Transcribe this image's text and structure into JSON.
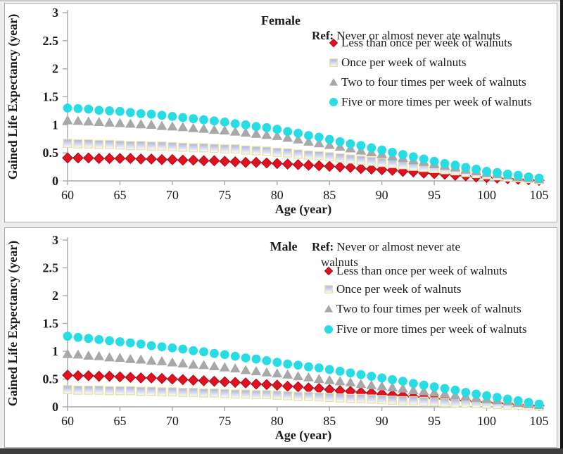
{
  "figure": {
    "accent_colors": {
      "diamond_red": "#e3101f",
      "diamond_red_edge": "#a60d18",
      "square_fill_top": "#a8b2e0",
      "square_fill_bottom": "#fdfdff",
      "square_edge": "#e7e1a2",
      "triangle_gray": "#a8a8a8",
      "circle_cyan": "#27dce4",
      "axis_gray": "#a8a8a8",
      "text_dark": "#1c1c1c"
    }
  },
  "chart_data": [
    {
      "type": "scatter",
      "title": "Female",
      "xlabel": "Age (year)",
      "ylabel": "Gained Life Expectancy (year)",
      "xlim": [
        58.5,
        106
      ],
      "ylim": [
        0,
        3
      ],
      "x_ticks": [
        60,
        65,
        70,
        75,
        80,
        85,
        90,
        95,
        100,
        105
      ],
      "y_ticks": [
        0,
        0.5,
        1,
        1.5,
        2,
        2.5,
        3
      ],
      "grid": false,
      "legend_position": "top-right-inside",
      "ref_bold": "Ref:",
      "ref_lines": [
        " Never or almost never ate walnuts"
      ],
      "x_start": 60,
      "x_step": 1,
      "series": [
        {
          "name": "Less than once per week of walnuts",
          "marker": "diamond",
          "values": [
            0.41,
            0.41,
            0.41,
            0.4,
            0.4,
            0.4,
            0.4,
            0.39,
            0.39,
            0.38,
            0.38,
            0.37,
            0.37,
            0.36,
            0.36,
            0.35,
            0.34,
            0.33,
            0.33,
            0.32,
            0.31,
            0.3,
            0.29,
            0.28,
            0.27,
            0.26,
            0.25,
            0.24,
            0.22,
            0.21,
            0.2,
            0.19,
            0.17,
            0.16,
            0.14,
            0.13,
            0.12,
            0.1,
            0.09,
            0.07,
            0.06,
            0.05,
            0.04,
            0.03,
            0.02,
            0.01
          ]
        },
        {
          "name": "Once per week of walnuts",
          "marker": "square",
          "values": [
            0.67,
            0.66,
            0.66,
            0.65,
            0.65,
            0.64,
            0.63,
            0.63,
            0.62,
            0.62,
            0.61,
            0.6,
            0.59,
            0.59,
            0.58,
            0.57,
            0.57,
            0.55,
            0.54,
            0.53,
            0.51,
            0.5,
            0.48,
            0.46,
            0.45,
            0.43,
            0.41,
            0.39,
            0.37,
            0.35,
            0.33,
            0.31,
            0.29,
            0.26,
            0.24,
            0.22,
            0.2,
            0.18,
            0.15,
            0.13,
            0.11,
            0.09,
            0.07,
            0.06,
            0.04,
            0.02
          ]
        },
        {
          "name": "Two to four times per week of walnuts",
          "marker": "triangle",
          "values": [
            1.08,
            1.07,
            1.06,
            1.05,
            1.04,
            1.03,
            1.02,
            1.01,
            1.0,
            0.98,
            0.97,
            0.96,
            0.94,
            0.93,
            0.91,
            0.9,
            0.88,
            0.86,
            0.84,
            0.82,
            0.8,
            0.77,
            0.74,
            0.7,
            0.67,
            0.64,
            0.61,
            0.58,
            0.54,
            0.51,
            0.48,
            0.44,
            0.41,
            0.37,
            0.34,
            0.3,
            0.27,
            0.24,
            0.2,
            0.17,
            0.14,
            0.12,
            0.1,
            0.07,
            0.05,
            0.03
          ]
        },
        {
          "name": "Five or more times per week of walnuts",
          "marker": "circle",
          "values": [
            1.3,
            1.29,
            1.28,
            1.26,
            1.25,
            1.24,
            1.22,
            1.2,
            1.19,
            1.17,
            1.15,
            1.13,
            1.11,
            1.09,
            1.07,
            1.05,
            1.02,
            1.0,
            0.97,
            0.95,
            0.92,
            0.88,
            0.85,
            0.81,
            0.78,
            0.74,
            0.7,
            0.66,
            0.63,
            0.59,
            0.55,
            0.51,
            0.47,
            0.43,
            0.39,
            0.35,
            0.31,
            0.28,
            0.24,
            0.21,
            0.17,
            0.15,
            0.12,
            0.1,
            0.07,
            0.05
          ]
        }
      ]
    },
    {
      "type": "scatter",
      "title": "Male",
      "xlabel": "Age (year)",
      "ylabel": "Gained Life Expectancy (year)",
      "xlim": [
        58.5,
        106
      ],
      "ylim": [
        0,
        3
      ],
      "x_ticks": [
        60,
        65,
        70,
        75,
        80,
        85,
        90,
        95,
        100,
        105
      ],
      "y_ticks": [
        0,
        0.5,
        1,
        1.5,
        2,
        2.5,
        3
      ],
      "grid": false,
      "legend_position": "top-right-inside",
      "ref_bold": "Ref:",
      "ref_lines": [
        " Never or almost never ate",
        "walnuts"
      ],
      "x_start": 60,
      "x_step": 1,
      "series": [
        {
          "name": "Less than once per week of walnuts",
          "marker": "diamond",
          "values": [
            0.57,
            0.56,
            0.56,
            0.55,
            0.55,
            0.54,
            0.53,
            0.52,
            0.52,
            0.51,
            0.5,
            0.49,
            0.48,
            0.47,
            0.46,
            0.45,
            0.44,
            0.43,
            0.41,
            0.4,
            0.39,
            0.37,
            0.36,
            0.34,
            0.33,
            0.31,
            0.29,
            0.28,
            0.26,
            0.25,
            0.23,
            0.21,
            0.2,
            0.18,
            0.17,
            0.15,
            0.14,
            0.12,
            0.11,
            0.09,
            0.08,
            0.07,
            0.06,
            0.04,
            0.03,
            0.02
          ]
        },
        {
          "name": "Once per week of walnuts",
          "marker": "square",
          "values": [
            0.31,
            0.3,
            0.3,
            0.3,
            0.29,
            0.29,
            0.29,
            0.28,
            0.28,
            0.27,
            0.27,
            0.26,
            0.26,
            0.25,
            0.25,
            0.24,
            0.23,
            0.23,
            0.22,
            0.22,
            0.21,
            0.2,
            0.19,
            0.19,
            0.18,
            0.17,
            0.16,
            0.15,
            0.15,
            0.14,
            0.13,
            0.12,
            0.11,
            0.11,
            0.1,
            0.09,
            0.08,
            0.07,
            0.07,
            0.06,
            0.05,
            0.04,
            0.03,
            0.03,
            0.02,
            0.01
          ]
        },
        {
          "name": "Two to four times per week of walnuts",
          "marker": "triangle",
          "values": [
            0.95,
            0.94,
            0.92,
            0.91,
            0.89,
            0.88,
            0.86,
            0.85,
            0.83,
            0.82,
            0.8,
            0.78,
            0.76,
            0.75,
            0.73,
            0.71,
            0.69,
            0.66,
            0.64,
            0.62,
            0.6,
            0.58,
            0.55,
            0.53,
            0.5,
            0.48,
            0.46,
            0.44,
            0.41,
            0.39,
            0.37,
            0.35,
            0.33,
            0.3,
            0.28,
            0.26,
            0.24,
            0.21,
            0.19,
            0.16,
            0.14,
            0.12,
            0.1,
            0.07,
            0.05,
            0.03
          ]
        },
        {
          "name": "Five or more times per week of walnuts",
          "marker": "circle",
          "values": [
            1.27,
            1.25,
            1.23,
            1.21,
            1.19,
            1.17,
            1.15,
            1.13,
            1.1,
            1.08,
            1.06,
            1.04,
            1.01,
            0.99,
            0.96,
            0.94,
            0.91,
            0.88,
            0.86,
            0.83,
            0.8,
            0.77,
            0.75,
            0.72,
            0.7,
            0.67,
            0.64,
            0.61,
            0.58,
            0.55,
            0.52,
            0.49,
            0.46,
            0.42,
            0.39,
            0.36,
            0.33,
            0.3,
            0.26,
            0.23,
            0.2,
            0.17,
            0.14,
            0.11,
            0.08,
            0.05
          ]
        }
      ]
    }
  ]
}
